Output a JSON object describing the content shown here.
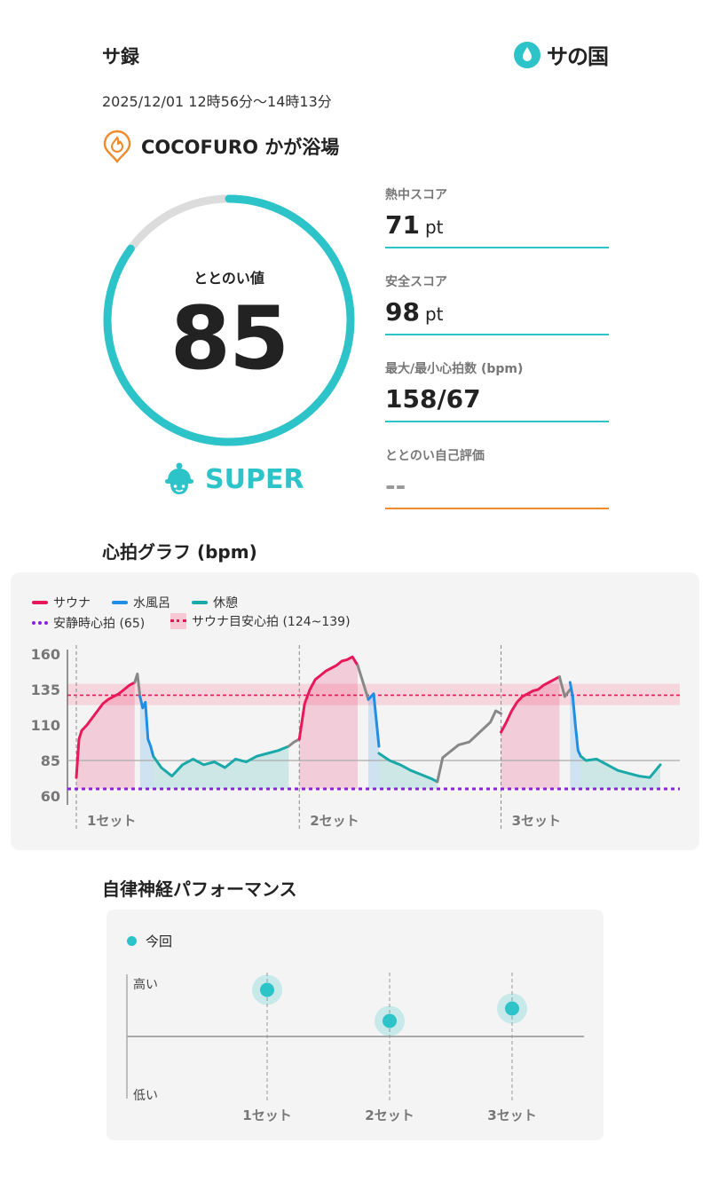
{
  "header": {
    "title": "サ録",
    "logo_text": "サの国"
  },
  "session": {
    "datetime": "2025/12/01 12時56分〜14時13分",
    "facility": "COCOFURO かが浴場"
  },
  "gauge": {
    "label": "ととのい値",
    "value": "85",
    "fraction": 0.85,
    "rank": "SUPER"
  },
  "metrics": [
    {
      "label": "熱中スコア",
      "value": "71",
      "unit": "pt"
    },
    {
      "label": "安全スコア",
      "value": "98",
      "unit": "pt"
    },
    {
      "label": "最大/最小心拍数 (bpm)",
      "value": "158/67",
      "unit": ""
    },
    {
      "label": "ととのい自己評価",
      "value": "--",
      "unit": ""
    }
  ],
  "colors": {
    "accent": "#2cc3c9",
    "sauna": "#e8185b",
    "water": "#1f8fe6",
    "rest": "#1ba8a8",
    "transition": "#888888",
    "resting_line": "#8a22e0",
    "target_band": "#f6c9d3",
    "self_eval": "#f08a2a"
  },
  "hr_chart": {
    "title": "心拍グラフ (bpm)",
    "legend": {
      "sauna": "サウナ",
      "water": "水風呂",
      "rest": "休憩",
      "resting": "安静時心拍 (65)",
      "target": "サウナ目安心拍 (124~139)"
    },
    "chart_data": {
      "type": "line",
      "ylabel": "",
      "xlabel": "",
      "ylim": [
        60,
        160
      ],
      "yticks": [
        "160",
        "135",
        "110",
        "85",
        "60"
      ],
      "resting_hr": 65,
      "target_band": [
        124,
        139
      ],
      "target_line": 131,
      "reference_line": 85,
      "set_labels": [
        "1セット",
        "2セット",
        "3セット"
      ],
      "set_markers_min": [
        0,
        42,
        80
      ],
      "segments": [
        {
          "phase": "sauna",
          "x": [
            0,
            0.5,
            1,
            2,
            3,
            4,
            5,
            6,
            7,
            8,
            9,
            10,
            11
          ],
          "y": [
            73,
            100,
            106,
            110,
            115,
            120,
            125,
            128,
            130,
            132,
            135,
            138,
            140
          ]
        },
        {
          "phase": "transition",
          "x": [
            11,
            11.5,
            12
          ],
          "y": [
            140,
            146,
            130
          ]
        },
        {
          "phase": "water",
          "x": [
            12,
            12.5,
            13,
            13.5,
            14,
            14.5
          ],
          "y": [
            130,
            122,
            126,
            100,
            95,
            88
          ]
        },
        {
          "phase": "rest",
          "x": [
            14.5,
            16,
            18,
            20,
            22,
            24,
            26,
            28,
            30,
            32,
            34,
            36,
            38,
            40
          ],
          "y": [
            88,
            80,
            74,
            82,
            86,
            82,
            84,
            80,
            86,
            84,
            88,
            90,
            92,
            95
          ]
        },
        {
          "phase": "transition",
          "x": [
            40,
            41,
            42
          ],
          "y": [
            95,
            98,
            100
          ]
        },
        {
          "phase": "sauna",
          "x": [
            42,
            43,
            44,
            45,
            46,
            47,
            48,
            49,
            50,
            51,
            52,
            53
          ],
          "y": [
            100,
            125,
            135,
            142,
            145,
            148,
            150,
            152,
            155,
            156,
            158,
            152
          ]
        },
        {
          "phase": "transition",
          "x": [
            53,
            54,
            55
          ],
          "y": [
            152,
            140,
            128
          ]
        },
        {
          "phase": "water",
          "x": [
            55,
            56,
            57
          ],
          "y": [
            128,
            132,
            95
          ]
        },
        {
          "phase": "rest",
          "x": [
            57,
            59,
            61,
            63,
            65,
            67,
            68
          ],
          "y": [
            90,
            85,
            82,
            78,
            75,
            72,
            70
          ]
        },
        {
          "phase": "transition",
          "x": [
            68,
            69,
            70,
            72,
            74,
            76,
            78,
            79,
            80
          ],
          "y": [
            70,
            87,
            90,
            96,
            98,
            105,
            112,
            120,
            118
          ]
        },
        {
          "phase": "sauna",
          "x": [
            80,
            81,
            82,
            83,
            84,
            85,
            86,
            87,
            88,
            89,
            90,
            91
          ],
          "y": [
            105,
            112,
            120,
            126,
            130,
            132,
            134,
            135,
            138,
            140,
            142,
            144
          ]
        },
        {
          "phase": "transition",
          "x": [
            91,
            92,
            93
          ],
          "y": [
            144,
            130,
            135
          ]
        },
        {
          "phase": "water",
          "x": [
            93,
            93.5,
            94,
            94.5,
            95
          ],
          "y": [
            140,
            130,
            110,
            92,
            88
          ]
        },
        {
          "phase": "rest",
          "x": [
            95,
            96,
            98,
            100,
            102,
            104,
            106,
            108,
            110
          ],
          "y": [
            88,
            85,
            86,
            82,
            78,
            76,
            74,
            73,
            82
          ]
        }
      ]
    }
  },
  "autonomic": {
    "title": "自律神経パフォーマンス",
    "legend": "今回",
    "y_high": "高い",
    "y_low": "低い",
    "chart_data": {
      "type": "scatter",
      "categories": [
        "1セット",
        "2セット",
        "3セット"
      ],
      "values": [
        0.75,
        0.25,
        0.45
      ],
      "ylim": [
        -1,
        1
      ],
      "series": [
        {
          "name": "今回",
          "values": [
            0.75,
            0.25,
            0.45
          ]
        }
      ]
    }
  }
}
